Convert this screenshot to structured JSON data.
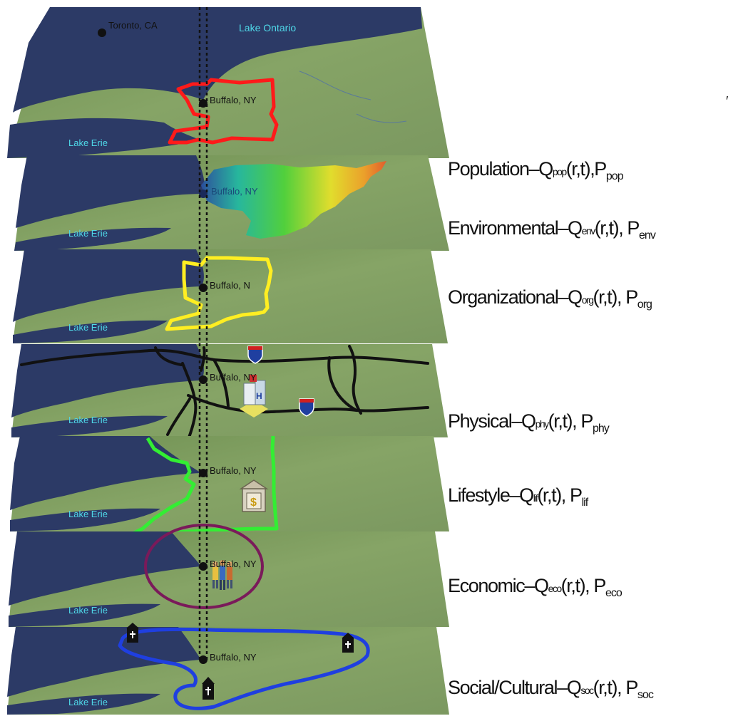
{
  "places": {
    "toronto": "Toronto, CA",
    "lake_ontario": "Lake Ontario",
    "buffalo": "Buffalo, NY",
    "buffalo_partial": "Buffalo, N",
    "lake_erie": "Lake Erie"
  },
  "stray_mark": "′",
  "layers": [
    {
      "key": "pop",
      "name": "Population",
      "sep": "–",
      "q": "Q",
      "qsub": "pop",
      "args": "(r,t),",
      "p": "P",
      "psub": "pop",
      "boundary_color": "#ff1a1a"
    },
    {
      "key": "env",
      "name": "Environmental",
      "sep": "–",
      "q": "Q",
      "qsub": "env",
      "args": "(r,t),",
      "p": "P",
      "psub": "env",
      "boundary_color": "elevation-gradient"
    },
    {
      "key": "org",
      "name": "Organizational",
      "sep": "–",
      "q": "Q",
      "qsub": "org",
      "args": "(r,t),",
      "p": "P",
      "psub": "org",
      "boundary_color": "#ffee22"
    },
    {
      "key": "phy",
      "name": "Physical",
      "sep": "–",
      "q": "Q",
      "qsub": "phy",
      "args": "(r,t),",
      "p": "P",
      "psub": "phy",
      "boundary_color": "#111111"
    },
    {
      "key": "lif",
      "name": "Lifestyle",
      "sep": "–",
      "q": "Q",
      "qsub": "lif",
      "args": "(r,t),",
      "p": "P",
      "psub": "lif",
      "boundary_color": "#33ee33"
    },
    {
      "key": "eco",
      "name": "Economic",
      "sep": "–",
      "q": "Q",
      "qsub": "eco",
      "args": "(r,t),",
      "p": "P",
      "psub": "eco",
      "boundary_color": "#7a1a5a"
    },
    {
      "key": "soc",
      "name": "Social/Cultural",
      "sep": "–",
      "q": "Q",
      "qsub": "soc",
      "args": "(r,t),",
      "p": "P",
      "psub": "soc",
      "boundary_color": "#1f3fe0"
    }
  ],
  "colors": {
    "land": "#7c9a5f",
    "water": "#2c3a66",
    "water_label": "#4fd8e8",
    "label_text": "#111111"
  },
  "icons": [
    "hospital-icon",
    "interstate-shield-icon",
    "bank-icon",
    "people-group-icon",
    "church-icon"
  ]
}
